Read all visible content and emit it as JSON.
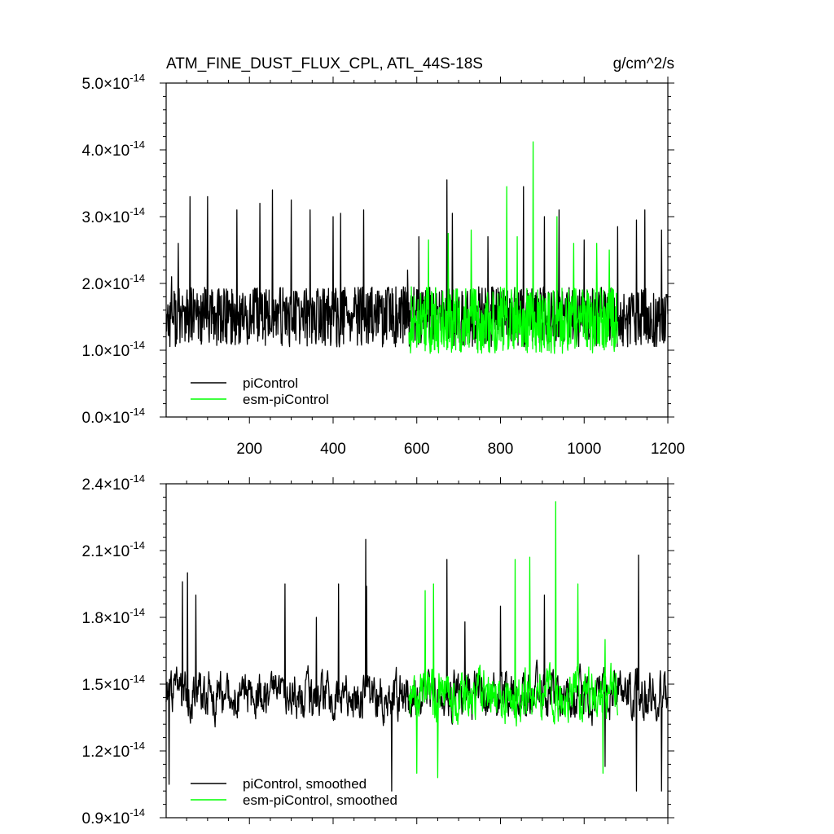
{
  "chart_data": [
    {
      "type": "line",
      "title": "ATM_FINE_DUST_FLUX_CPL, ATL_44S-18S",
      "units": "g/cm^2/s",
      "xlabel": "",
      "ylabel": "",
      "xlim": [
        1,
        1200
      ],
      "ylim": [
        0.0,
        5.0
      ],
      "y_exponent": "-14",
      "x_ticks": [
        "200",
        "400",
        "600",
        "800",
        "1000",
        "1200"
      ],
      "x_tick_values": [
        200,
        400,
        600,
        800,
        1000,
        1200
      ],
      "y_ticks": [
        "0.0",
        "1.0",
        "2.0",
        "3.0",
        "4.0",
        "5.0"
      ],
      "y_tick_values": [
        0,
        1,
        2,
        3,
        4,
        5
      ],
      "y_tick_mult": "×10",
      "legend_position": "lower-left",
      "series": [
        {
          "name": "piControl",
          "color": "#000000",
          "x_range": [
            1,
            1200
          ],
          "mean": 1.5,
          "baseline": 0.75,
          "variability": 0.45,
          "peaks": [
            [
              14,
              2.1
            ],
            [
              30,
              2.6
            ],
            [
              58,
              3.3
            ],
            [
              100,
              3.3
            ],
            [
              170,
              3.1
            ],
            [
              225,
              3.2
            ],
            [
              255,
              3.4
            ],
            [
              300,
              3.25
            ],
            [
              345,
              3.1
            ],
            [
              400,
              3.0
            ],
            [
              418,
              3.05
            ],
            [
              473,
              3.1
            ],
            [
              578,
              2.2
            ],
            [
              605,
              2.7
            ],
            [
              672,
              3.55
            ],
            [
              685,
              3.05
            ],
            [
              770,
              2.7
            ],
            [
              855,
              3.45
            ],
            [
              905,
              3.0
            ],
            [
              940,
              3.1
            ],
            [
              1000,
              2.65
            ],
            [
              1080,
              2.85
            ],
            [
              1125,
              2.95
            ],
            [
              1145,
              3.1
            ],
            [
              1185,
              2.8
            ]
          ]
        },
        {
          "name": "esm-piControl",
          "color": "#00ff00",
          "x_range": [
            581,
            1080
          ],
          "mean": 1.45,
          "baseline": 0.65,
          "variability": 0.5,
          "peaks": [
            [
              628,
              2.65
            ],
            [
              675,
              2.75
            ],
            [
              730,
              2.8
            ],
            [
              815,
              3.45
            ],
            [
              840,
              2.7
            ],
            [
              878,
              4.12
            ],
            [
              935,
              3.0
            ],
            [
              975,
              2.6
            ],
            [
              1030,
              2.6
            ],
            [
              1060,
              2.5
            ]
          ]
        }
      ]
    },
    {
      "type": "line",
      "title": "",
      "xlabel": "",
      "ylabel": "",
      "xlim": [
        1,
        1200
      ],
      "ylim": [
        0.9,
        2.4
      ],
      "y_exponent": "-14",
      "x_ticks": [
        "200",
        "400",
        "600",
        "800",
        "1000",
        "1200"
      ],
      "x_tick_values": [
        200,
        400,
        600,
        800,
        1000,
        1200
      ],
      "y_ticks": [
        "0.9",
        "1.2",
        "1.5",
        "1.8",
        "2.1",
        "2.4"
      ],
      "y_tick_values": [
        0.9,
        1.2,
        1.5,
        1.8,
        2.1,
        2.4
      ],
      "y_tick_mult": "×10",
      "legend_position": "lower-left",
      "series": [
        {
          "name": "piControl, smoothed",
          "color": "#000000",
          "x_range": [
            1,
            1200
          ],
          "mean": 1.45,
          "baseline": 1.02,
          "variability": 0.18,
          "peaks": [
            [
              8,
              1.05
            ],
            [
              40,
              1.96
            ],
            [
              52,
              2.0
            ],
            [
              72,
              1.9
            ],
            [
              285,
              1.95
            ],
            [
              360,
              1.8
            ],
            [
              413,
              1.95
            ],
            [
              478,
              2.15
            ],
            [
              480,
              1.94
            ],
            [
              540,
              1.0
            ],
            [
              672,
              2.06
            ],
            [
              715,
              1.78
            ],
            [
              800,
              1.85
            ],
            [
              905,
              1.9
            ],
            [
              1050,
              1.13
            ],
            [
              1125,
              0.99
            ],
            [
              1130,
              2.08
            ],
            [
              1185,
              1.02
            ]
          ]
        },
        {
          "name": "esm-piControl, smoothed",
          "color": "#00ff00",
          "x_range": [
            581,
            1080
          ],
          "mean": 1.45,
          "baseline": 1.08,
          "variability": 0.2,
          "peaks": [
            [
              600,
              1.1
            ],
            [
              620,
              1.92
            ],
            [
              640,
              1.95
            ],
            [
              650,
              1.07
            ],
            [
              835,
              2.06
            ],
            [
              870,
              2.07
            ],
            [
              932,
              2.32
            ],
            [
              985,
              1.95
            ],
            [
              1045,
              1.1
            ],
            [
              1050,
              1.7
            ]
          ]
        }
      ]
    }
  ]
}
